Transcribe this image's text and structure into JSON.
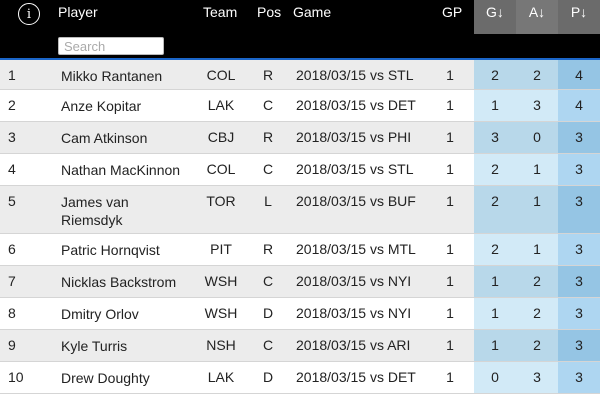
{
  "header": {
    "info_icon": "i",
    "player": "Player",
    "team": "Team",
    "pos": "Pos",
    "game": "Game",
    "gp": "GP",
    "g": "G↓",
    "a": "A↓",
    "p": "P↓",
    "search_placeholder": "Search"
  },
  "colors": {
    "header_bg": "#000000",
    "sort_header_bg": "#6b6b6b",
    "selected_row_border": "#1b66c9",
    "g_light": "#d2eaf7",
    "g_dark": "#b8d8ea",
    "a_light": "#d2eaf7",
    "a_dark": "#b8d8ea",
    "p_light": "#aed6f1",
    "p_dark": "#95c5e4"
  },
  "rows": [
    {
      "rank": "1",
      "player": "Mikko Rantanen",
      "team": "COL",
      "pos": "R",
      "game": "2018/03/15 vs STL",
      "gp": "1",
      "g": "2",
      "a": "2",
      "p": "4"
    },
    {
      "rank": "2",
      "player": "Anze Kopitar",
      "team": "LAK",
      "pos": "C",
      "game": "2018/03/15 vs DET",
      "gp": "1",
      "g": "1",
      "a": "3",
      "p": "4"
    },
    {
      "rank": "3",
      "player": "Cam Atkinson",
      "team": "CBJ",
      "pos": "R",
      "game": "2018/03/15 vs PHI",
      "gp": "1",
      "g": "3",
      "a": "0",
      "p": "3"
    },
    {
      "rank": "4",
      "player": "Nathan MacKinnon",
      "team": "COL",
      "pos": "C",
      "game": "2018/03/15 vs STL",
      "gp": "1",
      "g": "2",
      "a": "1",
      "p": "3"
    },
    {
      "rank": "5",
      "player": "James van Riemsdyk",
      "team": "TOR",
      "pos": "L",
      "game": "2018/03/15 vs BUF",
      "gp": "1",
      "g": "2",
      "a": "1",
      "p": "3"
    },
    {
      "rank": "6",
      "player": "Patric Hornqvist",
      "team": "PIT",
      "pos": "R",
      "game": "2018/03/15 vs MTL",
      "gp": "1",
      "g": "2",
      "a": "1",
      "p": "3"
    },
    {
      "rank": "7",
      "player": "Nicklas Backstrom",
      "team": "WSH",
      "pos": "C",
      "game": "2018/03/15 vs NYI",
      "gp": "1",
      "g": "1",
      "a": "2",
      "p": "3"
    },
    {
      "rank": "8",
      "player": "Dmitry Orlov",
      "team": "WSH",
      "pos": "D",
      "game": "2018/03/15 vs NYI",
      "gp": "1",
      "g": "1",
      "a": "2",
      "p": "3"
    },
    {
      "rank": "9",
      "player": "Kyle Turris",
      "team": "NSH",
      "pos": "C",
      "game": "2018/03/15 vs ARI",
      "gp": "1",
      "g": "1",
      "a": "2",
      "p": "3"
    },
    {
      "rank": "10",
      "player": "Drew Doughty",
      "team": "LAK",
      "pos": "D",
      "game": "2018/03/15 vs DET",
      "gp": "1",
      "g": "0",
      "a": "3",
      "p": "3"
    }
  ]
}
